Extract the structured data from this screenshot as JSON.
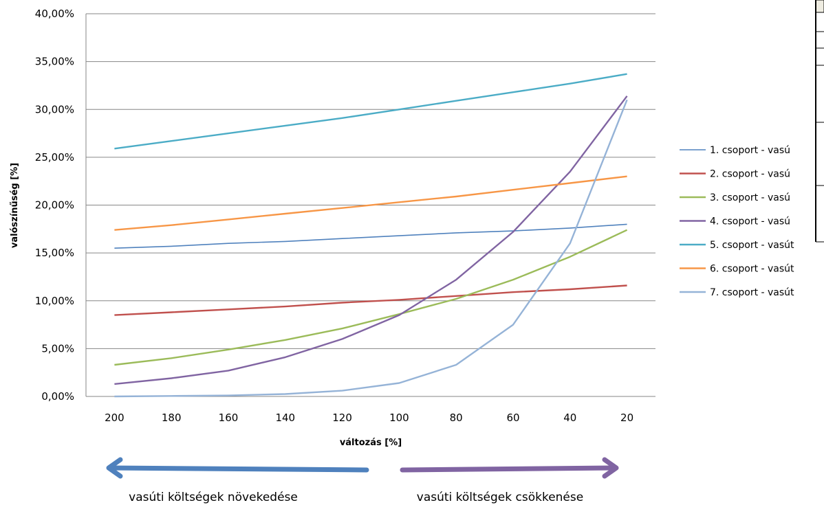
{
  "chart_data": {
    "type": "line",
    "title": "",
    "xlabel": "változás [%]",
    "ylabel": "valószínűség [%]",
    "ylim": [
      0,
      40
    ],
    "x": [
      200,
      180,
      160,
      140,
      120,
      100,
      80,
      60,
      40,
      20
    ],
    "y_ticks": [
      "0,00%",
      "5,00%",
      "10,00%",
      "15,00%",
      "20,00%",
      "25,00%",
      "30,00%",
      "35,00%",
      "40,00%"
    ],
    "x_ticks": [
      "200",
      "180",
      "160",
      "140",
      "120",
      "100",
      "80",
      "60",
      "40",
      "20"
    ],
    "grid": true,
    "legend_position": "right",
    "series": [
      {
        "name": "1. csoport - vasú",
        "color": "#4f81bd",
        "values": [
          15.5,
          15.7,
          16.0,
          16.2,
          16.5,
          16.8,
          17.1,
          17.3,
          17.6,
          18.0
        ]
      },
      {
        "name": "2. csoport - vasú",
        "color": "#c0504d",
        "values": [
          8.5,
          8.8,
          9.1,
          9.4,
          9.8,
          10.1,
          10.5,
          10.9,
          11.2,
          11.6
        ]
      },
      {
        "name": "3. csoport - vasú",
        "color": "#9bbb59",
        "values": [
          3.3,
          4.0,
          4.9,
          5.9,
          7.1,
          8.6,
          10.2,
          12.2,
          14.6,
          17.4
        ]
      },
      {
        "name": "4. csoport - vasú",
        "color": "#8064a2",
        "values": [
          1.3,
          1.9,
          2.7,
          4.1,
          6.0,
          8.5,
          12.2,
          17.2,
          23.5,
          31.4
        ]
      },
      {
        "name": "5. csoport - vasút",
        "color": "#4bacc6",
        "values": [
          25.9,
          26.7,
          27.5,
          28.3,
          29.1,
          30.0,
          30.9,
          31.8,
          32.7,
          33.7
        ]
      },
      {
        "name": "6. csoport - vasút",
        "color": "#f79646",
        "values": [
          17.4,
          17.9,
          18.5,
          19.1,
          19.7,
          20.3,
          20.9,
          21.6,
          22.3,
          23.0
        ]
      },
      {
        "name": "7. csoport - vasút",
        "color": "#95b3d7",
        "values": [
          0.0,
          0.05,
          0.1,
          0.25,
          0.6,
          1.4,
          3.3,
          7.5,
          16.0,
          31.0
        ]
      }
    ]
  },
  "arrows": {
    "left": {
      "label": "vasúti költségek növekedése",
      "color": "#4f81bd"
    },
    "right": {
      "label": "vasúti költségek csökkenése",
      "color": "#8064a2"
    }
  }
}
